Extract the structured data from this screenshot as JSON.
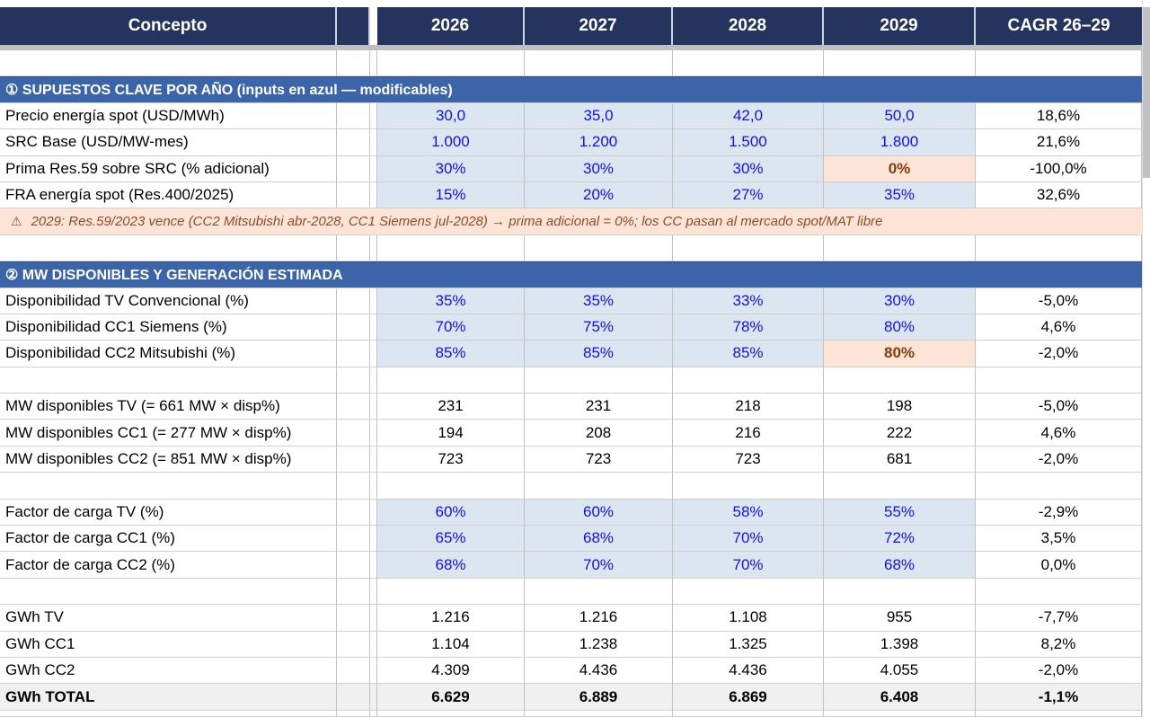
{
  "colors": {
    "header_bg": "#25345f",
    "section_bg": "#3c64a8",
    "input_bg": "#dce6f1",
    "input_text": "#1010f0",
    "exception_bg": "#fce4d6",
    "exception_text": "#843c0c",
    "note_text": "#8e4d26",
    "total_bg": "#f0f0f0"
  },
  "header": {
    "concept_label": "Concepto",
    "years": [
      "2026",
      "2027",
      "2028",
      "2029"
    ],
    "cagr_label": "CAGR 26–29"
  },
  "rows": [
    {
      "type": "empty"
    },
    {
      "type": "section",
      "label": "① SUPUESTOS CLAVE POR AÑO  (inputs en azul — modificables)"
    },
    {
      "type": "data",
      "style": "input",
      "label": "Precio energía spot (USD/MWh)",
      "values": [
        "30,0",
        "35,0",
        "42,0",
        "50,0"
      ],
      "cagr": "18,6%"
    },
    {
      "type": "data",
      "style": "input",
      "label": "SRC Base (USD/MW-mes)",
      "values": [
        "1.000",
        "1.200",
        "1.500",
        "1.800"
      ],
      "cagr": "21,6%"
    },
    {
      "type": "data",
      "style": "input",
      "label": "Prima Res.59 sobre SRC (% adicional)",
      "values": [
        "30%",
        "30%",
        "30%",
        "0%"
      ],
      "cagr": "-100,0%",
      "exception_last": true
    },
    {
      "type": "data",
      "style": "input",
      "label": "FRA energía spot (Res.400/2025)",
      "values": [
        "15%",
        "20%",
        "27%",
        "35%"
      ],
      "cagr": "32,6%"
    },
    {
      "type": "note",
      "icon": "⚠",
      "text": "2029: Res.59/2023 vence (CC2 Mitsubishi abr-2028, CC1 Siemens jul-2028) → prima adicional = 0%; los CC pasan al mercado spot/MAT libre"
    },
    {
      "type": "empty"
    },
    {
      "type": "section",
      "label": "② MW DISPONIBLES Y GENERACIÓN ESTIMADA"
    },
    {
      "type": "data",
      "style": "input",
      "label": "Disponibilidad TV Convencional (%)",
      "values": [
        "35%",
        "35%",
        "33%",
        "30%"
      ],
      "cagr": "-5,0%"
    },
    {
      "type": "data",
      "style": "input",
      "label": "Disponibilidad CC1 Siemens (%)",
      "values": [
        "70%",
        "75%",
        "78%",
        "80%"
      ],
      "cagr": "4,6%"
    },
    {
      "type": "data",
      "style": "input",
      "label": "Disponibilidad CC2 Mitsubishi (%)",
      "values": [
        "85%",
        "85%",
        "85%",
        "80%"
      ],
      "cagr": "-2,0%",
      "exception_last": true
    },
    {
      "type": "empty"
    },
    {
      "type": "data",
      "style": "calc",
      "label": "MW disponibles TV (= 661 MW × disp%)",
      "values": [
        "231",
        "231",
        "218",
        "198"
      ],
      "cagr": "-5,0%"
    },
    {
      "type": "data",
      "style": "calc",
      "label": "MW disponibles CC1 (= 277 MW × disp%)",
      "values": [
        "194",
        "208",
        "216",
        "222"
      ],
      "cagr": "4,6%"
    },
    {
      "type": "data",
      "style": "calc",
      "label": "MW disponibles CC2 (= 851 MW × disp%)",
      "values": [
        "723",
        "723",
        "723",
        "681"
      ],
      "cagr": "-2,0%"
    },
    {
      "type": "empty"
    },
    {
      "type": "data",
      "style": "input",
      "label": "Factor de carga TV (%)",
      "values": [
        "60%",
        "60%",
        "58%",
        "55%"
      ],
      "cagr": "-2,9%"
    },
    {
      "type": "data",
      "style": "input",
      "label": "Factor de carga CC1 (%)",
      "values": [
        "65%",
        "68%",
        "70%",
        "72%"
      ],
      "cagr": "3,5%"
    },
    {
      "type": "data",
      "style": "input",
      "label": "Factor de carga CC2 (%)",
      "values": [
        "68%",
        "70%",
        "70%",
        "68%"
      ],
      "cagr": "0,0%"
    },
    {
      "type": "empty"
    },
    {
      "type": "data",
      "style": "calc",
      "label": "GWh TV",
      "values": [
        "1.216",
        "1.216",
        "1.108",
        "955"
      ],
      "cagr": "-7,7%"
    },
    {
      "type": "data",
      "style": "calc",
      "label": "GWh CC1",
      "values": [
        "1.104",
        "1.238",
        "1.325",
        "1.398"
      ],
      "cagr": "8,2%"
    },
    {
      "type": "data",
      "style": "calc",
      "label": "GWh CC2",
      "values": [
        "4.309",
        "4.436",
        "4.436",
        "4.055"
      ],
      "cagr": "-2,0%"
    },
    {
      "type": "data",
      "style": "total",
      "label": "GWh TOTAL",
      "values": [
        "6.629",
        "6.889",
        "6.869",
        "6.408"
      ],
      "cagr": "-1,1%"
    },
    {
      "type": "empty",
      "partial": true
    }
  ]
}
